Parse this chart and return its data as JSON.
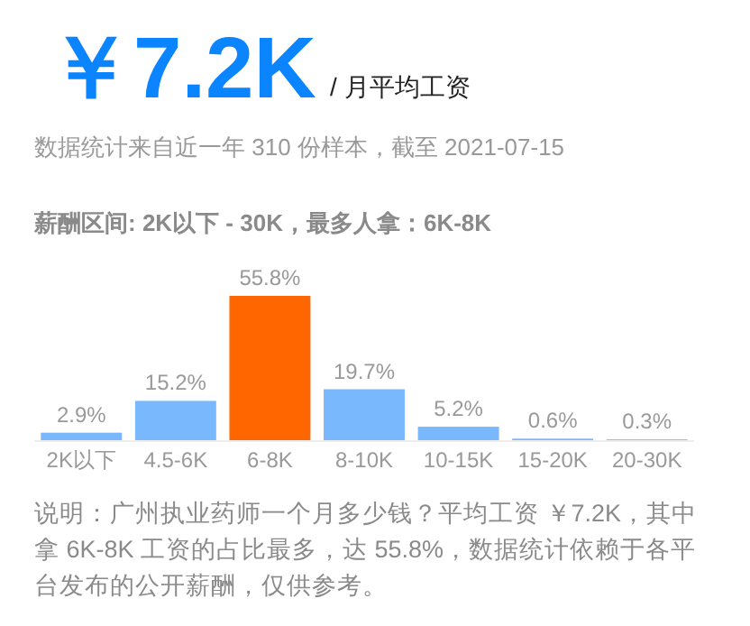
{
  "chart_data": {
    "type": "bar",
    "title": "￥7.2K",
    "subtitle": "/ 月平均工资",
    "annotations": [
      "数据统计来自近一年 310 份样本，截至 2021-07-15",
      "薪酬区间: 2K以下 - 30K，最多人拿：6K-8K",
      "说明：广州执业药师一个月多少钱？平均工资 ￥7.2K，其中拿 6K-8K 工资的占比最多，达 55.8%，数据统计依赖于各平台发布的公开薪酬，仅供参考。"
    ],
    "categories": [
      "2K以下",
      "4.5-6K",
      "6-8K",
      "8-10K",
      "10-15K",
      "15-20K",
      "20-30K"
    ],
    "values": [
      2.9,
      15.2,
      55.8,
      19.7,
      5.2,
      0.6,
      0.3
    ],
    "value_labels": [
      "2.9%",
      "15.2%",
      "55.8%",
      "19.7%",
      "5.2%",
      "0.6%",
      "0.3%"
    ],
    "colors": [
      "#7ab8fd",
      "#7ab8fd",
      "#ff6600",
      "#7ab8fd",
      "#7ab8fd",
      "#7ab8fd",
      "#7ab8fd"
    ]
  }
}
